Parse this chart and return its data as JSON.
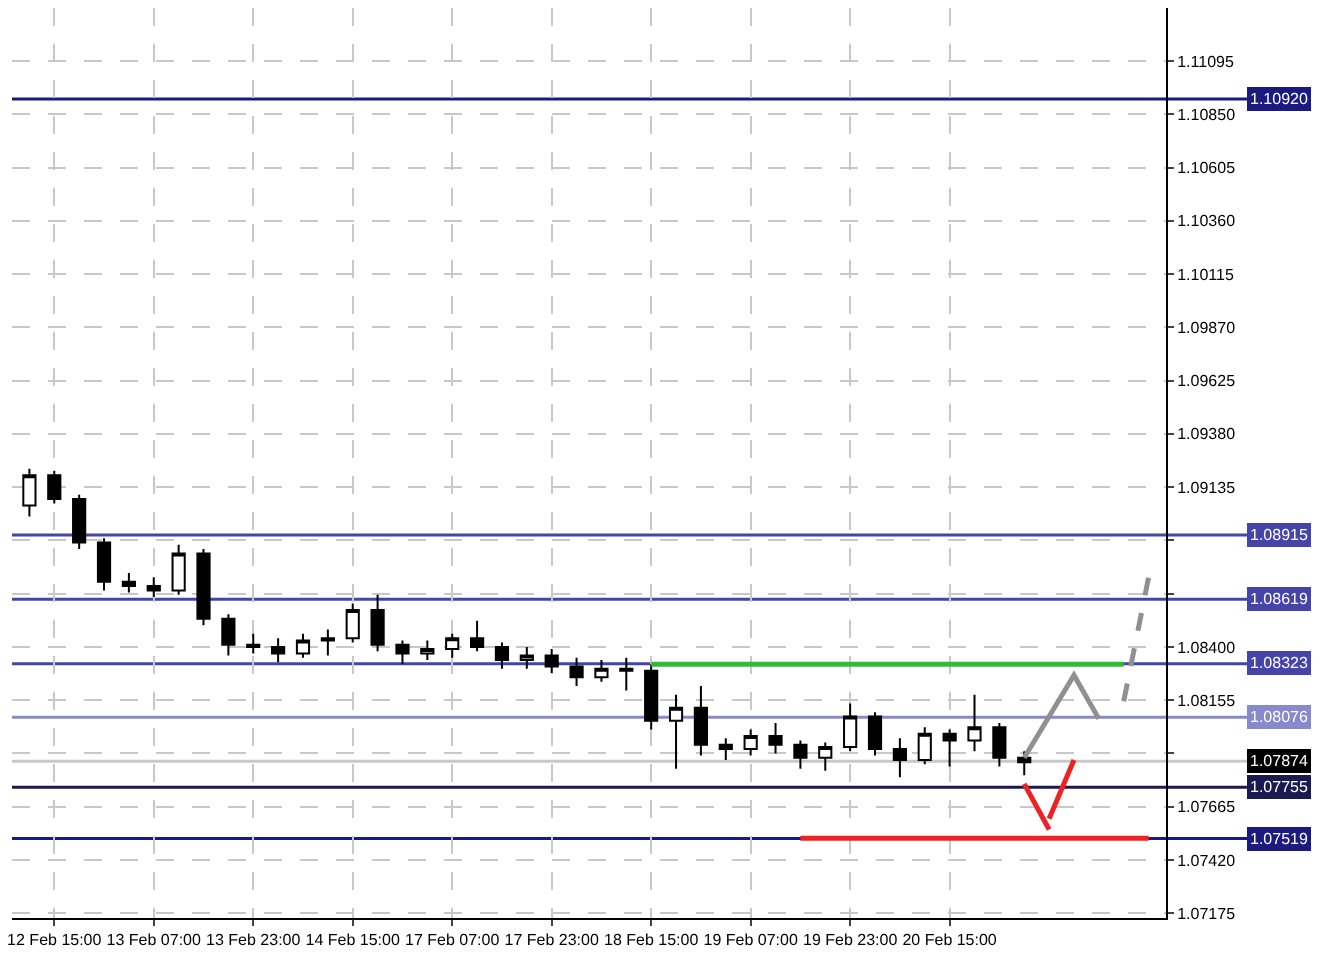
{
  "chart_data": {
    "type": "candlestick",
    "categories": [
      null,
      "12 Feb 15:00",
      null,
      null,
      null,
      "13 Feb 07:00",
      null,
      null,
      null,
      "13 Feb 23:00",
      null,
      null,
      null,
      "14 Feb 15:00",
      null,
      null,
      null,
      "17 Feb 07:00",
      null,
      null,
      null,
      "17 Feb 23:00",
      null,
      null,
      null,
      "18 Feb 15:00",
      null,
      null,
      null,
      "19 Feb 07:00",
      null,
      null,
      null,
      "19 Feb 23:00",
      null,
      null,
      null,
      "20 Feb 15:00",
      null,
      null,
      null,
      null,
      null,
      null,
      null,
      null
    ],
    "ohlc": [
      [
        1.0905,
        1.0922,
        1.09,
        1.0919
      ],
      [
        1.0919,
        1.0921,
        1.0906,
        1.0908
      ],
      [
        1.0908,
        1.091,
        1.0885,
        1.0888
      ],
      [
        1.0888,
        1.089,
        1.0866,
        1.087
      ],
      [
        1.087,
        1.0874,
        1.0865,
        1.0868
      ],
      [
        1.0868,
        1.0872,
        1.0863,
        1.0866
      ],
      [
        1.0866,
        1.0887,
        1.0864,
        1.0883
      ],
      [
        1.0883,
        1.0885,
        1.085,
        1.0853
      ],
      [
        1.0853,
        1.0855,
        1.0836,
        1.0841
      ],
      [
        1.0841,
        1.0846,
        1.0837,
        1.084
      ],
      [
        1.084,
        1.0844,
        1.0833,
        1.0837
      ],
      [
        1.0837,
        1.0846,
        1.0835,
        1.0843
      ],
      [
        1.0843,
        1.0848,
        1.0836,
        1.0844
      ],
      [
        1.0844,
        1.086,
        1.0842,
        1.0857
      ],
      [
        1.0857,
        1.0864,
        1.0838,
        1.0841
      ],
      [
        1.0841,
        1.0843,
        1.0832,
        1.0837
      ],
      [
        1.0837,
        1.0843,
        1.0834,
        1.0839
      ],
      [
        1.0839,
        1.0846,
        1.0835,
        1.0844
      ],
      [
        1.0844,
        1.0852,
        1.0838,
        1.084
      ],
      [
        1.084,
        1.0842,
        1.083,
        1.0834
      ],
      [
        1.0834,
        1.084,
        1.083,
        1.0836
      ],
      [
        1.0836,
        1.0839,
        1.0828,
        1.0831
      ],
      [
        1.0831,
        1.0835,
        1.0822,
        1.0826
      ],
      [
        1.0826,
        1.0834,
        1.0824,
        1.083
      ],
      [
        1.083,
        1.0835,
        1.082,
        1.0829
      ],
      [
        1.0829,
        1.0832,
        1.0802,
        1.0806
      ],
      [
        1.0806,
        1.0818,
        1.0784,
        1.0812
      ],
      [
        1.0812,
        1.0822,
        1.079,
        1.0795
      ],
      [
        1.0795,
        1.0798,
        1.0788,
        1.0793
      ],
      [
        1.0793,
        1.0802,
        1.079,
        1.0799
      ],
      [
        1.0799,
        1.0805,
        1.0791,
        1.0795
      ],
      [
        1.0795,
        1.0797,
        1.0784,
        1.0789
      ],
      [
        1.0789,
        1.0796,
        1.0783,
        1.0794
      ],
      [
        1.0794,
        1.0814,
        1.0792,
        1.0808
      ],
      [
        1.0808,
        1.081,
        1.079,
        1.0793
      ],
      [
        1.0793,
        1.0798,
        1.078,
        1.0788
      ],
      [
        1.0788,
        1.0803,
        1.0786,
        1.08
      ],
      [
        1.08,
        1.0802,
        1.0785,
        1.0797
      ],
      [
        1.0797,
        1.0818,
        1.0792,
        1.0803
      ],
      [
        1.0803,
        1.0805,
        1.0785,
        1.0789
      ],
      [
        1.0789,
        1.0792,
        1.0781,
        1.0787
      ],
      null,
      null,
      null,
      null,
      null
    ],
    "series": [
      {
        "type": "line",
        "color": "#33bb33",
        "values": [
          null,
          null,
          null,
          null,
          null,
          null,
          null,
          null,
          null,
          null,
          null,
          null,
          null,
          null,
          null,
          null,
          null,
          null,
          null,
          null,
          null,
          null,
          null,
          null,
          null,
          1.0832,
          1.0832,
          1.0832,
          1.0832,
          1.0832,
          1.0832,
          1.0832,
          1.0832,
          1.0832,
          1.0832,
          1.0832,
          1.0832,
          1.0832,
          1.0832,
          1.0832,
          1.0832,
          1.0832,
          1.0832,
          1.0832,
          1.0832,
          null
        ]
      },
      {
        "type": "line",
        "color": "#ee2222",
        "values": [
          null,
          null,
          null,
          null,
          null,
          null,
          null,
          null,
          null,
          null,
          null,
          null,
          null,
          null,
          null,
          null,
          null,
          null,
          null,
          null,
          null,
          null,
          null,
          null,
          null,
          null,
          null,
          null,
          null,
          null,
          null,
          1.0752,
          1.0752,
          1.0752,
          1.0752,
          1.0752,
          1.0752,
          1.0752,
          1.0752,
          1.0752,
          1.0752,
          1.0752,
          1.0752,
          1.0752,
          1.0752,
          1.0752
        ]
      },
      {
        "type": "line",
        "color": "#909090",
        "values": [
          null,
          null,
          null,
          null,
          null,
          null,
          null,
          null,
          null,
          null,
          null,
          null,
          null,
          null,
          null,
          null,
          null,
          null,
          null,
          null,
          null,
          null,
          null,
          null,
          null,
          null,
          null,
          null,
          null,
          null,
          null,
          null,
          null,
          null,
          null,
          null,
          null,
          null,
          null,
          null,
          1.0789,
          1.0808,
          1.0827,
          1.0807,
          null,
          null
        ]
      },
      {
        "type": "line",
        "color": "#909090",
        "line_style": "dashed",
        "values": [
          null,
          null,
          null,
          null,
          null,
          null,
          null,
          null,
          null,
          null,
          null,
          null,
          null,
          null,
          null,
          null,
          null,
          null,
          null,
          null,
          null,
          null,
          null,
          null,
          null,
          null,
          null,
          null,
          null,
          null,
          null,
          null,
          null,
          null,
          null,
          null,
          null,
          null,
          null,
          null,
          null,
          null,
          null,
          null,
          1.0815,
          1.0872
        ]
      },
      {
        "type": "line",
        "color": "#ee2222",
        "values": [
          null,
          null,
          null,
          null,
          null,
          null,
          null,
          null,
          null,
          null,
          null,
          null,
          null,
          null,
          null,
          null,
          null,
          null,
          null,
          null,
          null,
          null,
          null,
          null,
          null,
          null,
          null,
          null,
          null,
          null,
          null,
          null,
          null,
          null,
          null,
          null,
          null,
          null,
          null,
          null,
          1.0777,
          1.0756,
          null,
          null,
          null,
          null
        ]
      },
      {
        "type": "line",
        "color": "#ee2222",
        "values": [
          null,
          null,
          null,
          null,
          null,
          null,
          null,
          null,
          null,
          null,
          null,
          null,
          null,
          null,
          null,
          null,
          null,
          null,
          null,
          null,
          null,
          null,
          null,
          null,
          null,
          null,
          null,
          null,
          null,
          null,
          null,
          null,
          null,
          null,
          null,
          null,
          null,
          null,
          null,
          null,
          null,
          1.0761,
          1.0788,
          null,
          null,
          null
        ]
      }
    ],
    "ref_lines": [
      {
        "axis": "y",
        "value": 1.1092,
        "label": "1.10920",
        "color": "#1a1a80"
      },
      {
        "axis": "y",
        "value": 1.08915,
        "label": "1.08915",
        "color": "#4444aa"
      },
      {
        "axis": "y",
        "value": 1.08619,
        "label": "1.08619",
        "color": "#4444aa"
      },
      {
        "axis": "y",
        "value": 1.08323,
        "label": "1.08323",
        "color": "#4444aa"
      },
      {
        "axis": "y",
        "value": 1.08076,
        "label": "1.08076",
        "color": "#8888cc"
      },
      {
        "axis": "y",
        "value": 1.07874,
        "label": "1.07874",
        "color": "#c8c8c8"
      },
      {
        "axis": "y",
        "value": 1.07755,
        "label": "1.07755",
        "color": "#1a1a50"
      },
      {
        "axis": "y",
        "value": 1.07519,
        "label": "1.07519",
        "color": "#1a1a80"
      }
    ],
    "ylim": [
      1.07153,
      1.11339
    ],
    "yticks": [
      {
        "value": 1.11095,
        "label": "1.11095"
      },
      {
        "value": 1.1085,
        "label": "1.10850"
      },
      {
        "value": 1.10605,
        "label": "1.10605"
      },
      {
        "value": 1.1036,
        "label": "1.10360"
      },
      {
        "value": 1.10115,
        "label": "1.10115"
      },
      {
        "value": 1.0987,
        "label": "1.09870"
      },
      {
        "value": 1.09625,
        "label": "1.09625"
      },
      {
        "value": 1.0938,
        "label": "1.09380"
      },
      {
        "value": 1.09135,
        "label": "1.09135"
      },
      {
        "value": 1.0889,
        "label": null
      },
      {
        "value": 1.08645,
        "label": null
      },
      {
        "value": 1.084,
        "label": "1.08400"
      },
      {
        "value": 1.08155,
        "label": "1.08155"
      },
      {
        "value": 1.0791,
        "label": null
      },
      {
        "value": 1.07665,
        "label": "1.07665"
      },
      {
        "value": 1.0742,
        "label": "1.07420"
      },
      {
        "value": 1.07175,
        "label": "1.07175"
      }
    ],
    "grid": true
  }
}
